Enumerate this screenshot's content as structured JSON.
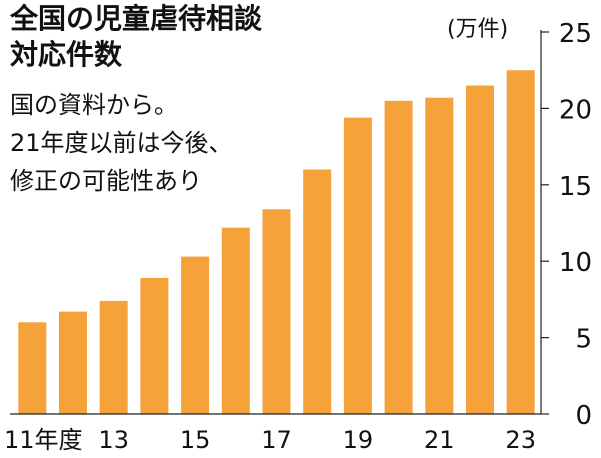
{
  "header": {
    "title_line1": "全国の児童虐待相談",
    "title_line2": "対応件数"
  },
  "note": {
    "line1": "国の資料から。",
    "line2": "21年度以前は今後、",
    "line3": "修正の可能性あり"
  },
  "colors": {
    "bar": "#F5A23B",
    "axis": "#222222",
    "text": "#111111",
    "background": "#ffffff"
  },
  "chart_data": {
    "type": "bar",
    "title": "全国の児童虐待相談対応件数",
    "unit": "(万件)",
    "categories": [
      "2011",
      "2012",
      "2013",
      "2014",
      "2015",
      "2016",
      "2017",
      "2018",
      "2019",
      "2020",
      "2021",
      "2022",
      "2023"
    ],
    "x_tick_labels": [
      "11年度",
      "",
      "13",
      "",
      "15",
      "",
      "17",
      "",
      "19",
      "",
      "21",
      "",
      "23"
    ],
    "values": [
      6.0,
      6.7,
      7.4,
      8.9,
      10.3,
      12.2,
      13.4,
      16.0,
      19.4,
      20.5,
      20.7,
      21.5,
      22.5
    ],
    "ylim": [
      0,
      25
    ],
    "y_ticks": [
      0,
      5,
      10,
      15,
      20,
      25
    ],
    "y_axis_position": "right",
    "grid": false,
    "legend": "none"
  }
}
